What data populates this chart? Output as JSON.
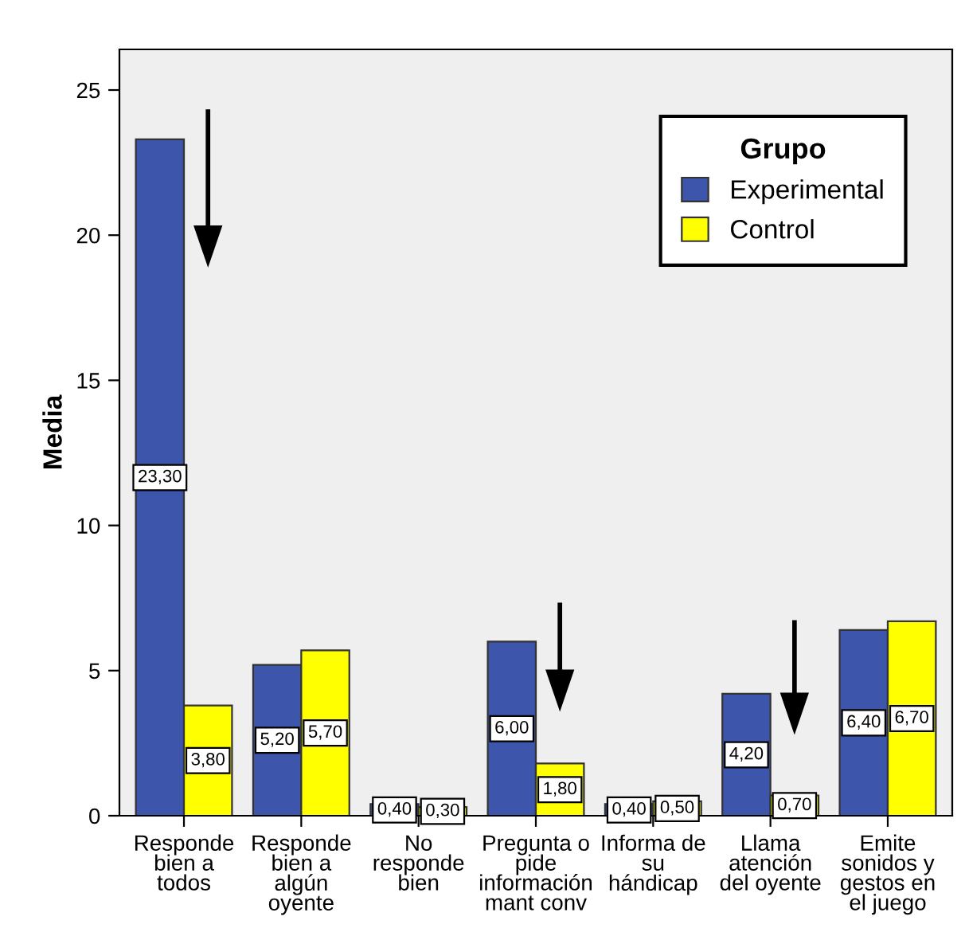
{
  "chart_data": {
    "type": "bar",
    "ylabel": "Media",
    "legend_title": "Grupo",
    "legend": "top right",
    "categories": [
      "Responde\nbien a\ntodos",
      "Responde\nbien a\nalgún\noyente",
      "No\nresponde\nbien",
      "Pregunta o\npide\ninformación\nmant conv",
      "Informa de\nsu\nhándicap",
      "Llama\natención\ndel oyente",
      "Emite\nsonidos y\ngestos en\nel juego"
    ],
    "series": [
      {
        "name": "Experimental",
        "color": "#3d55ab",
        "values": [
          23.3,
          5.2,
          0.4,
          6.0,
          0.4,
          4.2,
          6.4
        ],
        "value_labels": [
          "23,30",
          "5,20",
          "0,40",
          "6,00",
          "0,40",
          "4,20",
          "6,40"
        ]
      },
      {
        "name": "Control",
        "color": "#ffff00",
        "values": [
          3.8,
          5.7,
          0.3,
          1.8,
          0.5,
          0.7,
          6.7
        ],
        "value_labels": [
          "3,80",
          "5,70",
          "0,30",
          "1,80",
          "0,50",
          "0,70",
          "6,70"
        ]
      }
    ],
    "ylim": [
      0,
      26.4
    ],
    "yticks": [
      0,
      5,
      10,
      15,
      20,
      25
    ],
    "grid": false
  }
}
